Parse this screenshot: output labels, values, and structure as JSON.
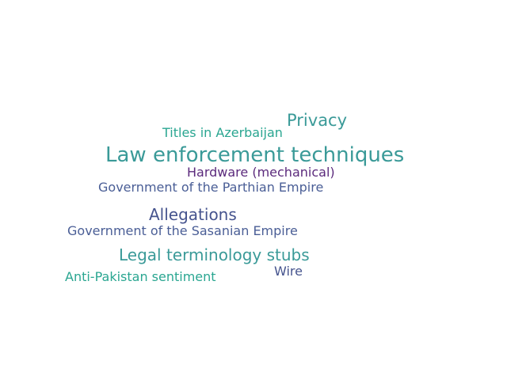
{
  "words": [
    {
      "text": "Privacy",
      "color": "#3a9a98"
    },
    {
      "text": "Titles in Azerbaijan",
      "color": "#2aa691"
    },
    {
      "text": "Law enforcement techniques",
      "color": "#3a9a98"
    },
    {
      "text": "Hardware (mechanical)",
      "color": "#5b2a7c"
    },
    {
      "text": "Government of the Parthian Empire",
      "color": "#4a5e96"
    },
    {
      "text": "Allegations",
      "color": "#46548e"
    },
    {
      "text": "Government of the Sasanian Empire",
      "color": "#4a5e96"
    },
    {
      "text": "Legal terminology stubs",
      "color": "#3a9a98"
    },
    {
      "text": "Wire",
      "color": "#46548e"
    },
    {
      "text": "Anti-Pakistan sentiment",
      "color": "#2aa691"
    }
  ]
}
